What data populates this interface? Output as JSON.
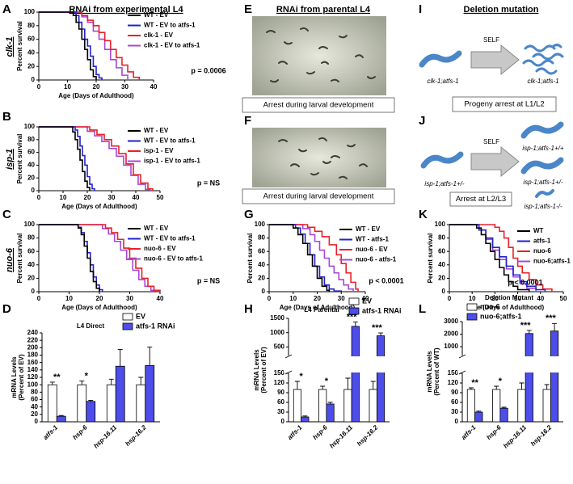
{
  "headers": [
    "RNAi from experimental L4",
    "RNAi from parental L4",
    "Deletion mutation"
  ],
  "images": [
    {
      "panel": "E",
      "caption": "Arrest during larval development"
    },
    {
      "panel": "F",
      "caption": "Arrest during larval development"
    }
  ],
  "diagrams": [
    {
      "panel": "I",
      "self": "SELF",
      "parent": "clk-1;atfs-1",
      "progeny": [
        "clk-1;atfs-1"
      ],
      "note": "Progeny arrest at L1/L2"
    },
    {
      "panel": "J",
      "self": "SELF",
      "parent": "isp-1;atfs-1+/-",
      "progeny": [
        "isp-1;atfs-1+/+",
        "isp-1;atfs-1+/-",
        "isp-1;atfs-1-/-"
      ],
      "note": "Arrest at L2/L3"
    }
  ],
  "chart_data": [
    {
      "panel": "A",
      "type": "line",
      "step": true,
      "strain": "clk-1",
      "xlabel": "Age (Days of Adulthood)",
      "ylabel": "Percent survival",
      "xlim": [
        0,
        40
      ],
      "xticks": [
        0,
        10,
        20,
        30,
        40
      ],
      "ylim": [
        0,
        100
      ],
      "yticks": [
        0,
        20,
        40,
        60,
        80,
        100
      ],
      "annotation": "p = 0.0006",
      "series": [
        {
          "name": "WT - EV",
          "color": "#000000",
          "x": [
            0,
            10,
            12,
            13,
            14,
            15,
            16,
            17,
            18,
            19,
            20
          ],
          "values": [
            100,
            100,
            95,
            85,
            75,
            60,
            45,
            30,
            15,
            5,
            0
          ]
        },
        {
          "name": "WT - EV to atfs-1",
          "color": "#2222cc",
          "x": [
            0,
            11,
            13,
            14,
            15,
            16,
            17,
            18,
            19,
            20,
            21,
            22
          ],
          "values": [
            100,
            100,
            95,
            85,
            75,
            60,
            50,
            35,
            20,
            8,
            3,
            0
          ]
        },
        {
          "name": "clk-1 - EV",
          "color": "#e8202a",
          "x": [
            0,
            12,
            15,
            17,
            19,
            21,
            23,
            25,
            27,
            29,
            31,
            33,
            35
          ],
          "values": [
            100,
            100,
            95,
            88,
            80,
            70,
            58,
            45,
            33,
            22,
            12,
            4,
            0
          ]
        },
        {
          "name": "clk-1 - EV to atfs-1",
          "color": "#a648d8",
          "x": [
            0,
            12,
            15,
            17,
            19,
            21,
            23,
            25,
            27,
            29,
            31
          ],
          "values": [
            100,
            100,
            93,
            85,
            72,
            60,
            45,
            30,
            18,
            7,
            0
          ]
        }
      ]
    },
    {
      "panel": "B",
      "type": "line",
      "step": true,
      "strain": "isp-1",
      "xlabel": "Age (Days of Adulthood)",
      "ylabel": "Percent survival",
      "xlim": [
        0,
        50
      ],
      "xticks": [
        0,
        10,
        20,
        30,
        40,
        50
      ],
      "ylim": [
        0,
        100
      ],
      "yticks": [
        0,
        20,
        40,
        60,
        80,
        100
      ],
      "annotation": "p = NS",
      "series": [
        {
          "name": "WT - EV",
          "color": "#000000",
          "x": [
            0,
            12,
            14,
            15,
            16,
            17,
            18,
            19,
            20,
            21
          ],
          "values": [
            100,
            100,
            92,
            80,
            65,
            48,
            30,
            15,
            5,
            0
          ]
        },
        {
          "name": "WT - EV to atfs-1",
          "color": "#2222cc",
          "x": [
            0,
            13,
            15,
            16,
            17,
            18,
            19,
            20,
            21,
            22,
            23
          ],
          "values": [
            100,
            100,
            95,
            85,
            70,
            55,
            40,
            22,
            10,
            3,
            0
          ]
        },
        {
          "name": "isp-1 - EV",
          "color": "#e8202a",
          "x": [
            0,
            18,
            21,
            24,
            27,
            30,
            33,
            36,
            39,
            42,
            45,
            47
          ],
          "values": [
            100,
            100,
            95,
            88,
            80,
            70,
            58,
            42,
            25,
            12,
            3,
            0
          ]
        },
        {
          "name": "isp-1 - EV to atfs-1",
          "color": "#a648d8",
          "x": [
            0,
            17,
            20,
            23,
            26,
            29,
            32,
            35,
            38,
            41,
            44,
            46
          ],
          "values": [
            100,
            100,
            93,
            86,
            77,
            66,
            54,
            40,
            24,
            10,
            2,
            0
          ]
        }
      ]
    },
    {
      "panel": "C",
      "type": "line",
      "step": true,
      "strain": "nuo-6",
      "xlabel": "Age (Days of Adulthood)",
      "ylabel": "Percent survival",
      "xlim": [
        0,
        40
      ],
      "xticks": [
        0,
        10,
        20,
        30,
        40
      ],
      "ylim": [
        0,
        100
      ],
      "yticks": [
        0,
        20,
        40,
        60,
        80,
        100
      ],
      "annotation": "p = NS",
      "series": [
        {
          "name": "WT - EV",
          "color": "#000000",
          "x": [
            0,
            12,
            13,
            14,
            15,
            16,
            17,
            18,
            19,
            20
          ],
          "values": [
            100,
            100,
            95,
            85,
            68,
            50,
            30,
            15,
            5,
            0
          ]
        },
        {
          "name": "WT - EV to atfs-1",
          "color": "#2222cc",
          "x": [
            0,
            12,
            13,
            14,
            15,
            16,
            17,
            18,
            19,
            20,
            21
          ],
          "values": [
            100,
            100,
            96,
            88,
            75,
            58,
            40,
            22,
            10,
            3,
            0
          ]
        },
        {
          "name": "nuo-6 - EV",
          "color": "#e8202a",
          "x": [
            0,
            20,
            22,
            24,
            26,
            28,
            30,
            32,
            34,
            36,
            38,
            40
          ],
          "values": [
            100,
            100,
            95,
            88,
            78,
            65,
            50,
            35,
            20,
            8,
            2,
            0
          ]
        },
        {
          "name": "nuo-6 - EV to atfs-1",
          "color": "#a648d8",
          "x": [
            0,
            19,
            21,
            23,
            25,
            27,
            29,
            31,
            33,
            35,
            37,
            39
          ],
          "values": [
            100,
            100,
            94,
            86,
            75,
            62,
            48,
            32,
            18,
            8,
            2,
            0
          ]
        }
      ]
    },
    {
      "panel": "D",
      "type": "bar",
      "title": "L4 Direct",
      "ylabel": [
        "mRNA Levels",
        "(Percent of EV)"
      ],
      "categories": [
        "atfs-1",
        "hsp-6",
        "hsp-16.11",
        "hsp-16.2"
      ],
      "ylim": [
        0,
        240
      ],
      "yticks": [
        0,
        20,
        40,
        60,
        80,
        100,
        120,
        140,
        160,
        180,
        200,
        220,
        240
      ],
      "significance": [
        "**",
        "*",
        null,
        null
      ],
      "series": [
        {
          "name": "EV",
          "color": "#ffffff",
          "values": [
            100,
            100,
            100,
            100
          ],
          "errors": [
            7,
            10,
            15,
            20
          ]
        },
        {
          "name": "atfs-1 RNAi",
          "color": "#4d4dea",
          "values": [
            15,
            55,
            150,
            152
          ],
          "errors": [
            2,
            3,
            45,
            50
          ]
        }
      ]
    },
    {
      "panel": "G",
      "type": "line",
      "step": true,
      "xlabel": "Age (Days of Adulthood)",
      "ylabel": "Percent survival",
      "xlim": [
        0,
        40
      ],
      "xticks": [
        0,
        10,
        20,
        30,
        40
      ],
      "ylim": [
        0,
        100
      ],
      "yticks": [
        0,
        20,
        40,
        60,
        80,
        100
      ],
      "annotation": "p < 0.0001",
      "series": [
        {
          "name": "WT - EV",
          "color": "#000000",
          "x": [
            0,
            8,
            10,
            12,
            14,
            16,
            18,
            20,
            22,
            24,
            25
          ],
          "values": [
            100,
            100,
            95,
            85,
            72,
            55,
            38,
            20,
            8,
            2,
            0
          ]
        },
        {
          "name": "WT - atfs-1",
          "color": "#2222cc",
          "x": [
            0,
            9,
            11,
            13,
            15,
            17,
            19,
            21,
            23,
            25,
            27,
            30
          ],
          "values": [
            100,
            100,
            95,
            86,
            72,
            55,
            38,
            22,
            10,
            4,
            1,
            0
          ]
        },
        {
          "name": "nuo-6 - EV",
          "color": "#e8202a",
          "x": [
            0,
            12,
            16,
            19,
            22,
            25,
            28,
            30,
            32,
            34,
            36,
            37
          ],
          "values": [
            100,
            100,
            96,
            90,
            82,
            70,
            55,
            42,
            28,
            14,
            4,
            0
          ]
        },
        {
          "name": "nuo-6 - atfs-1",
          "color": "#a648d8",
          "x": [
            0,
            11,
            14,
            17,
            19,
            21,
            23,
            25,
            27,
            29,
            31,
            33,
            35
          ],
          "values": [
            100,
            100,
            94,
            85,
            75,
            62,
            50,
            38,
            28,
            18,
            10,
            4,
            0
          ]
        }
      ]
    },
    {
      "panel": "H",
      "type": "bar",
      "title": "L4 Parental",
      "ylabel": [
        "mRNA Levels",
        "(Percent of EV)"
      ],
      "categories": [
        "atfs-1",
        "hsp-6",
        "hsp-16.11",
        "hsp-16.2"
      ],
      "segments": [
        {
          "ylim": [
            0,
            150
          ],
          "yticks": [
            0,
            30,
            60,
            90,
            120,
            150
          ]
        },
        {
          "ylim": [
            200,
            1500
          ],
          "yticks": [
            500,
            1000,
            1500
          ]
        }
      ],
      "significance": [
        "*",
        "*",
        "***",
        "***"
      ],
      "series": [
        {
          "name": "EV",
          "color": "#ffffff",
          "values": [
            100,
            100,
            100,
            100
          ],
          "errors": [
            25,
            10,
            35,
            25
          ]
        },
        {
          "name": "atfs-1 RNAi",
          "color": "#4d4dea",
          "values": [
            15,
            55,
            1220,
            890
          ],
          "errors": [
            3,
            5,
            150,
            100
          ]
        }
      ]
    },
    {
      "panel": "K",
      "type": "line",
      "step": true,
      "xlabel": "Age (Days of Adulthood)",
      "ylabel": "Percent survival",
      "xlim": [
        0,
        50
      ],
      "xticks": [
        0,
        10,
        20,
        30,
        40,
        50
      ],
      "ylim": [
        0,
        100
      ],
      "yticks": [
        0,
        20,
        40,
        60,
        80,
        100
      ],
      "annotation": "p < 0.0001",
      "series": [
        {
          "name": "WT",
          "color": "#000000",
          "x": [
            0,
            10,
            12,
            14,
            16,
            18,
            20,
            22,
            24,
            26,
            28,
            30,
            35
          ],
          "values": [
            100,
            100,
            95,
            85,
            72,
            60,
            48,
            36,
            25,
            15,
            8,
            3,
            0
          ]
        },
        {
          "name": "atfs-1",
          "color": "#2222cc",
          "x": [
            0,
            10,
            13,
            16,
            19,
            22,
            25,
            28,
            31,
            34,
            38,
            42
          ],
          "values": [
            100,
            100,
            92,
            80,
            66,
            52,
            38,
            25,
            15,
            8,
            3,
            0
          ]
        },
        {
          "name": "nuo-6",
          "color": "#e8202a",
          "x": [
            0,
            18,
            20,
            22,
            24,
            26,
            28,
            30,
            32,
            35,
            38,
            41,
            45
          ],
          "values": [
            100,
            100,
            96,
            90,
            80,
            66,
            50,
            38,
            28,
            18,
            10,
            4,
            0
          ]
        },
        {
          "name": "nuo-6;atfs-1",
          "color": "#a648d8",
          "x": [
            0,
            10,
            13,
            16,
            19,
            22,
            25,
            28,
            31,
            34,
            38
          ],
          "values": [
            100,
            100,
            92,
            78,
            62,
            48,
            34,
            22,
            12,
            5,
            0
          ]
        }
      ]
    },
    {
      "panel": "L",
      "type": "bar",
      "title": "Deletion Mutant",
      "ylabel": [
        "mRNA Levels",
        "(Percent of WT)"
      ],
      "categories": [
        "atfs-1",
        "hsp-6",
        "hsp-16.11",
        "hsp-16.2"
      ],
      "segments": [
        {
          "ylim": [
            0,
            150
          ],
          "yticks": [
            0,
            30,
            60,
            90,
            120,
            150
          ]
        },
        {
          "ylim": [
            300,
            3000
          ],
          "yticks": [
            1000,
            2000,
            3000
          ]
        }
      ],
      "significance": [
        "**",
        "*",
        "***",
        "***"
      ],
      "series": [
        {
          "name": "nuo-6",
          "color": "#ffffff",
          "values": [
            100,
            100,
            100,
            100
          ],
          "errors": [
            5,
            10,
            20,
            15
          ]
        },
        {
          "name": "nuo-6;atfs-1",
          "color": "#4d4dea",
          "values": [
            30,
            42,
            2050,
            2250
          ],
          "errors": [
            3,
            3,
            250,
            600
          ]
        }
      ]
    }
  ]
}
